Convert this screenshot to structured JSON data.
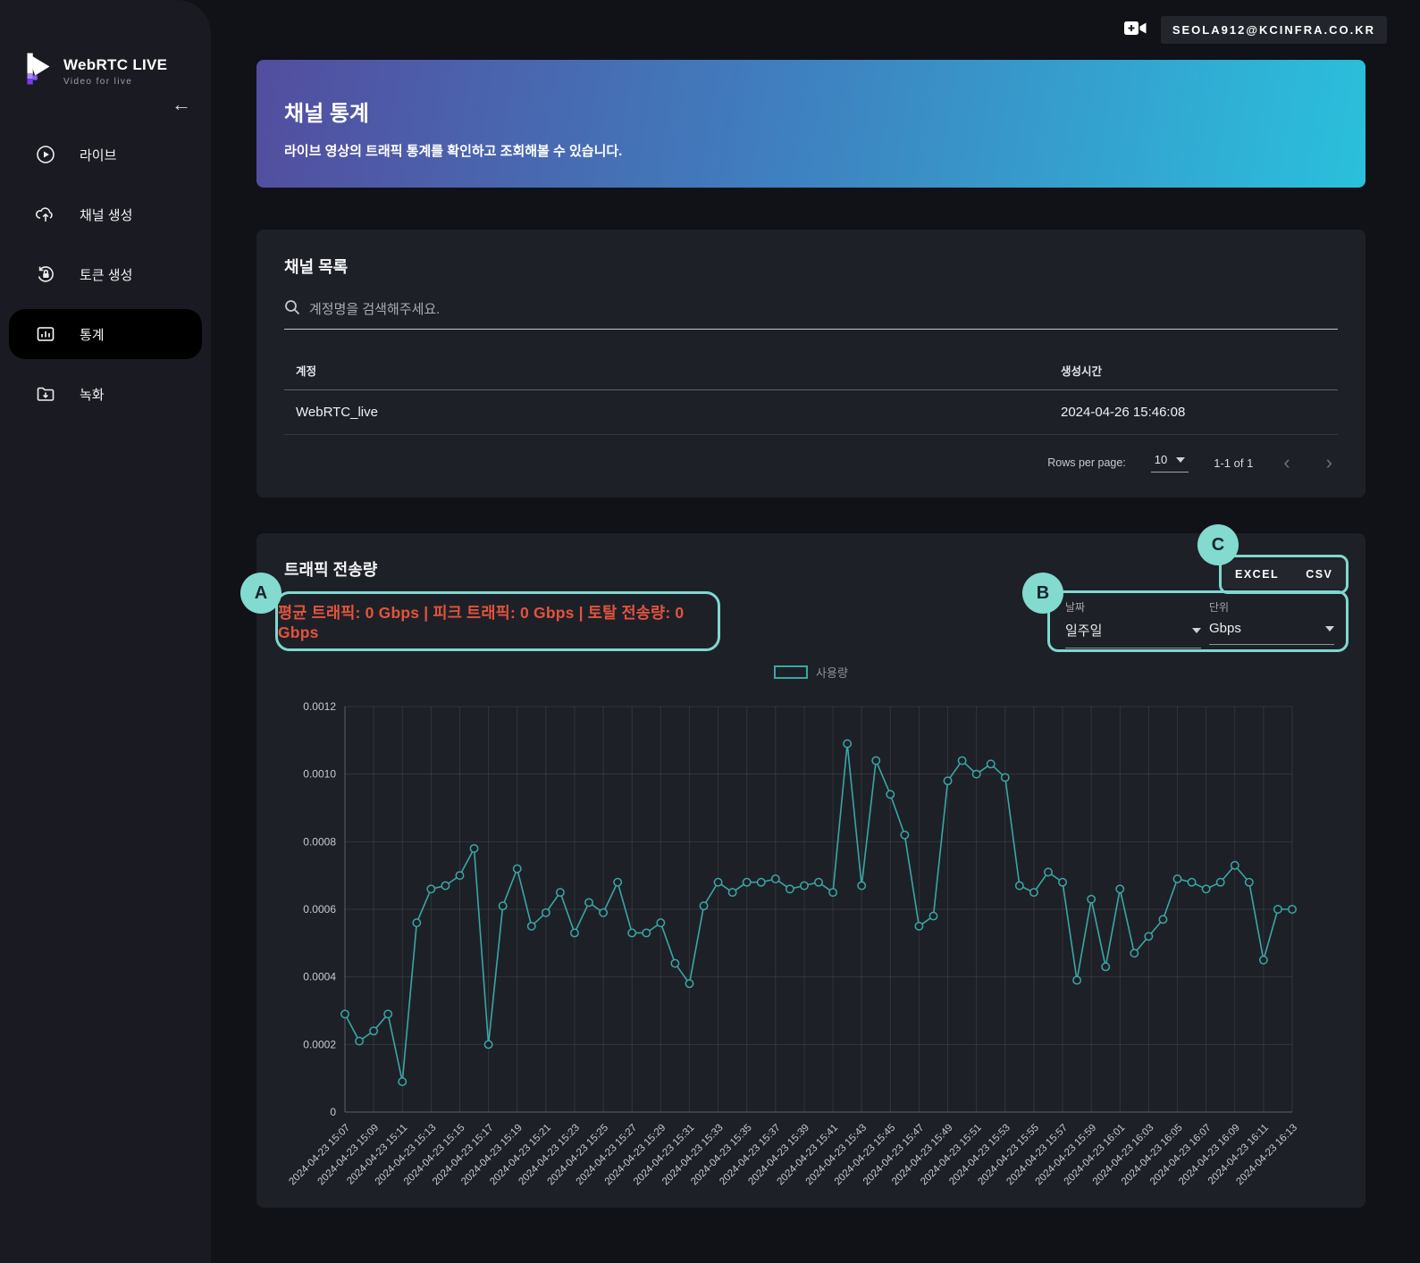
{
  "topbar": {
    "email": "SEOLA912@KCINFRA.CO.KR"
  },
  "sidebar": {
    "brand": {
      "title": "WebRTC LIVE",
      "subtitle": "Video for live"
    },
    "collapse": "←",
    "items": [
      {
        "label": "라이브"
      },
      {
        "label": "채널 생성"
      },
      {
        "label": "토큰 생성"
      },
      {
        "label": "통계"
      },
      {
        "label": "녹화"
      }
    ]
  },
  "header": {
    "title": "채널 통계",
    "subtitle": "라이브 영상의 트래픽 통계를 확인하고 조회해볼 수 있습니다."
  },
  "channel_list": {
    "title": "채널 목록",
    "search_placeholder": "계정명을 검색해주세요.",
    "columns": {
      "account": "계정",
      "created": "생성시간"
    },
    "rows": [
      {
        "account": "WebRTC_live",
        "created": "2024-04-26 15:46:08"
      }
    ],
    "pagination": {
      "rows_per_page_label": "Rows per page:",
      "rows_per_page": "10",
      "range": "1-1 of 1",
      "prev": "‹",
      "next": "›"
    }
  },
  "traffic": {
    "title": "트래픽 전송량",
    "stats": "평균 트래픽: 0 Gbps | 피크 트래픽: 0 Gbps | 토탈 전송량: 0 Gbps",
    "annotations": {
      "a": "A",
      "b": "B",
      "c": "C"
    },
    "export": {
      "excel": "EXCEL",
      "csv": "CSV"
    },
    "filters": {
      "date_label": "날짜",
      "date_value": "일주일",
      "unit_label": "단위",
      "unit_value": "Gbps"
    }
  },
  "colors": {
    "accent_teal": "#7fd8cf",
    "stat_red": "#e2543c",
    "line_teal": "#3aa7a4",
    "gradient_left": "#534d9f",
    "gradient_right": "#2ac0dc"
  },
  "chart_data": {
    "type": "line",
    "legend_label": "사용량",
    "legend_position": "top-center",
    "grid": true,
    "line_color": "#3aa7a4",
    "date_prefix": "2024-04-23",
    "tick_every": 2,
    "ylim": [
      0,
      0.0012
    ],
    "yticks": [
      0,
      0.0002,
      0.0004,
      0.0006,
      0.0008,
      0.001,
      0.0012
    ],
    "x": [
      "15:07",
      "15:08",
      "15:09",
      "15:10",
      "15:11",
      "15:12",
      "15:13",
      "15:14",
      "15:15",
      "15:16",
      "15:17",
      "15:18",
      "15:19",
      "15:20",
      "15:21",
      "15:22",
      "15:23",
      "15:24",
      "15:25",
      "15:26",
      "15:27",
      "15:28",
      "15:29",
      "15:30",
      "15:31",
      "15:32",
      "15:33",
      "15:34",
      "15:35",
      "15:36",
      "15:37",
      "15:38",
      "15:39",
      "15:40",
      "15:41",
      "15:42",
      "15:43",
      "15:44",
      "15:45",
      "15:46",
      "15:47",
      "15:48",
      "15:49",
      "15:50",
      "15:51",
      "15:52",
      "15:53",
      "15:54",
      "15:55",
      "15:56",
      "15:57",
      "15:58",
      "15:59",
      "16:00",
      "16:01",
      "16:02",
      "16:03",
      "16:04",
      "16:05",
      "16:06",
      "16:07",
      "16:08",
      "16:09",
      "16:10",
      "16:11",
      "16:12",
      "16:13"
    ],
    "values": [
      0.00029,
      0.00021,
      0.00024,
      0.00029,
      9e-05,
      0.00056,
      0.00066,
      0.00067,
      0.0007,
      0.00078,
      0.0002,
      0.00061,
      0.00072,
      0.00055,
      0.00059,
      0.00065,
      0.00053,
      0.00062,
      0.00059,
      0.00068,
      0.00053,
      0.00053,
      0.00056,
      0.00044,
      0.00038,
      0.00061,
      0.00068,
      0.00065,
      0.00068,
      0.00068,
      0.00069,
      0.00066,
      0.00067,
      0.00068,
      0.00065,
      0.00109,
      0.00067,
      0.00104,
      0.00094,
      0.00082,
      0.00055,
      0.00058,
      0.00098,
      0.00104,
      0.001,
      0.00103,
      0.00099,
      0.00067,
      0.00065,
      0.00071,
      0.00068,
      0.00039,
      0.00063,
      0.00043,
      0.00066,
      0.00047,
      0.00052,
      0.00057,
      0.00069,
      0.00068,
      0.00066,
      0.00068,
      0.00073,
      0.00068,
      0.00045,
      0.0006,
      0.0006
    ]
  }
}
